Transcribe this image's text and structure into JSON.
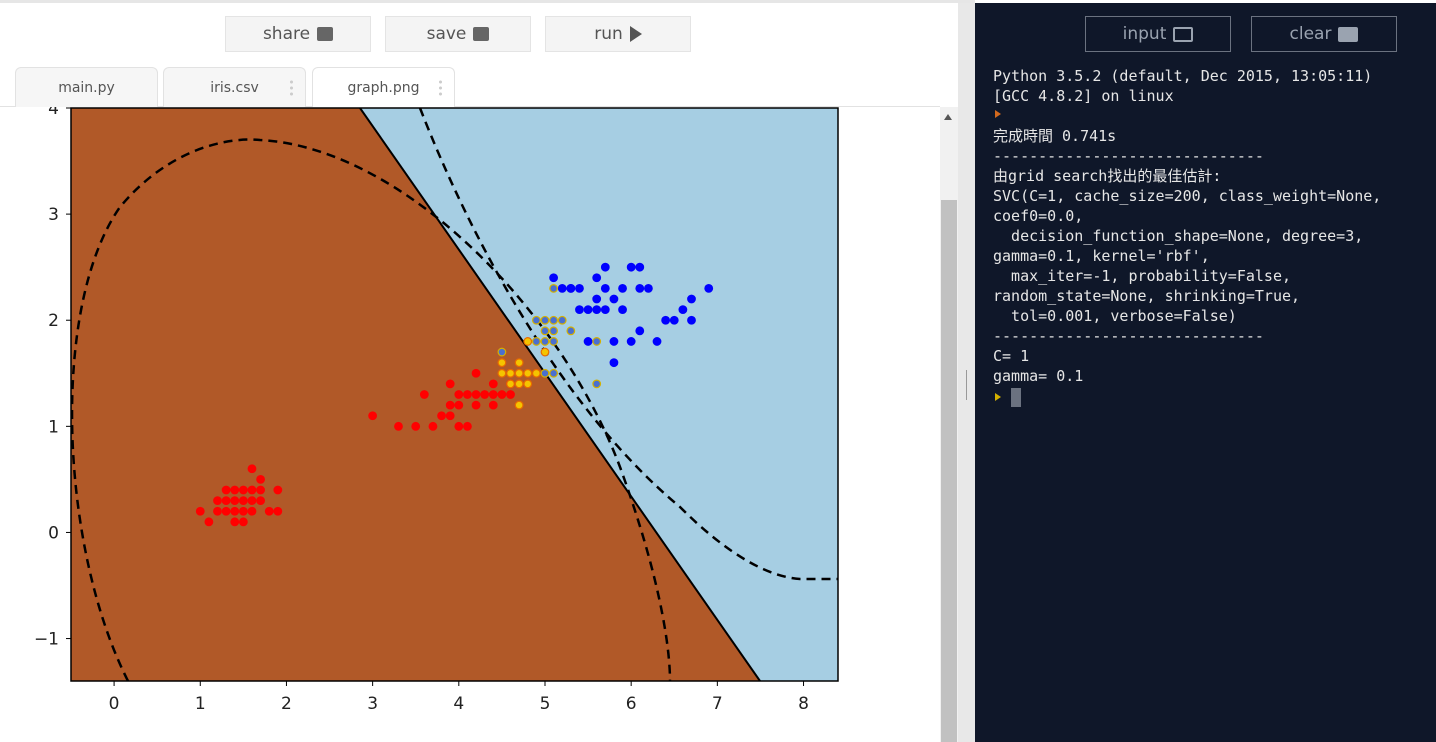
{
  "toolbar": {
    "buttons": [
      "share",
      "save",
      "run"
    ]
  },
  "tabs": [
    "main.py",
    "iris.csv",
    "graph.png"
  ],
  "graph": {
    "type": "scatter",
    "xlim": [
      -0.5,
      8.4
    ],
    "ylim": [
      -1.4,
      4
    ],
    "xticks": [
      0,
      1,
      2,
      3,
      4,
      5,
      6,
      7,
      8
    ],
    "yticks": [
      {
        "value": -1,
        "label": "−1"
      },
      0,
      1,
      2,
      3,
      4
    ],
    "series": [
      {
        "color": "#ff0000",
        "edgecolor": "#ff0000",
        "x": [
          1.4,
          1.3,
          1.5,
          1.7,
          1.4,
          1.5,
          1.6,
          1.1,
          1.2,
          1.5,
          1.3,
          1.7,
          1.5,
          1.0,
          1.9,
          1.6,
          1.6,
          1.9,
          1.4,
          1.7,
          1.3,
          1.6,
          1.4,
          1.8,
          1.2,
          3.0,
          3.3,
          3.5,
          3.6,
          3.7,
          3.8,
          3.9,
          3.9,
          3.9,
          4.0,
          4.0,
          4.0,
          4.1,
          4.1,
          4.2,
          4.2,
          4.2,
          4.3,
          4.4,
          4.4,
          4.4,
          4.5,
          4.6,
          4.6
        ],
        "y": [
          0.2,
          0.2,
          0.2,
          0.4,
          0.3,
          0.1,
          0.2,
          0.1,
          0.2,
          0.4,
          0.4,
          0.3,
          0.3,
          0.2,
          0.2,
          0.4,
          0.6,
          0.4,
          0.1,
          0.5,
          0.3,
          0.3,
          0.4,
          0.2,
          0.3,
          1.1,
          1.0,
          1.0,
          1.3,
          1.0,
          1.1,
          1.1,
          1.2,
          1.4,
          1.0,
          1.2,
          1.3,
          1.0,
          1.3,
          1.2,
          1.3,
          1.5,
          1.3,
          1.2,
          1.3,
          1.4,
          1.3,
          1.3,
          1.4
        ]
      },
      {
        "color": "#0000ff",
        "edgecolor": "#0000ff",
        "x": [
          6.0,
          5.9,
          5.8,
          6.6,
          6.3,
          5.8,
          6.1,
          5.5,
          5.1,
          5.3,
          6.7,
          6.9,
          5.7,
          6.7,
          5.7,
          6.0,
          5.8,
          6.1,
          6.4,
          5.6,
          6.1,
          5.6,
          5.5,
          5.4,
          5.9,
          5.7,
          5.2,
          5.4,
          5.6,
          6.2,
          6.5,
          5.3
        ],
        "y": [
          2.5,
          2.1,
          2.2,
          2.1,
          1.8,
          1.8,
          2.5,
          2.1,
          2.4,
          2.3,
          2.2,
          2.3,
          2.3,
          2.0,
          2.1,
          1.8,
          1.6,
          1.9,
          2.0,
          2.2,
          2.3,
          2.4,
          1.8,
          2.1,
          2.3,
          2.5,
          2.3,
          2.3,
          2.1,
          2.3,
          2.0,
          2.3
        ]
      },
      {
        "color": "#f5c400",
        "edgecolor": "#e86a00",
        "x": [
          4.5,
          4.5,
          4.6,
          4.7,
          4.7,
          4.8,
          4.6,
          4.7,
          4.8,
          4.9,
          5.0,
          4.7,
          4.8
        ],
        "y": [
          1.5,
          1.6,
          1.5,
          1.5,
          1.4,
          1.5,
          1.4,
          1.6,
          1.8,
          1.5,
          1.7,
          1.2,
          1.4
        ]
      },
      {
        "color": "#4a6fd0",
        "edgecolor": "#d4b000",
        "x": [
          4.5,
          4.9,
          5.0,
          5.1,
          5.0,
          5.1,
          5.2,
          5.0,
          4.9,
          5.1,
          5.0,
          5.1,
          5.3,
          5.6,
          5.6,
          5.1
        ],
        "y": [
          1.7,
          2.0,
          2.0,
          2.0,
          1.9,
          1.9,
          2.0,
          1.8,
          1.8,
          1.8,
          1.5,
          1.5,
          1.9,
          1.8,
          1.4,
          2.3
        ]
      }
    ]
  },
  "console": {
    "buttons": [
      "input",
      "clear"
    ],
    "lines": [
      "Python 3.5.2 (default, Dec 2015, 13:05:11)",
      "[GCC 4.8.2] on linux",
      "",
      "完成時間 0.741s",
      "------------------------------",
      "由grid search找出的最佳估計:",
      "SVC(C=1, cache_size=200, class_weight=None,",
      "coef0=0.0,",
      "  decision_function_shape=None, degree=3,",
      "gamma=0.1, kernel='rbf',",
      "  max_iter=-1, probability=False,",
      "random_state=None, shrinking=True,",
      "  tol=0.001, verbose=False)",
      "------------------------------",
      "C= 1",
      "gamma= 0.1"
    ]
  }
}
